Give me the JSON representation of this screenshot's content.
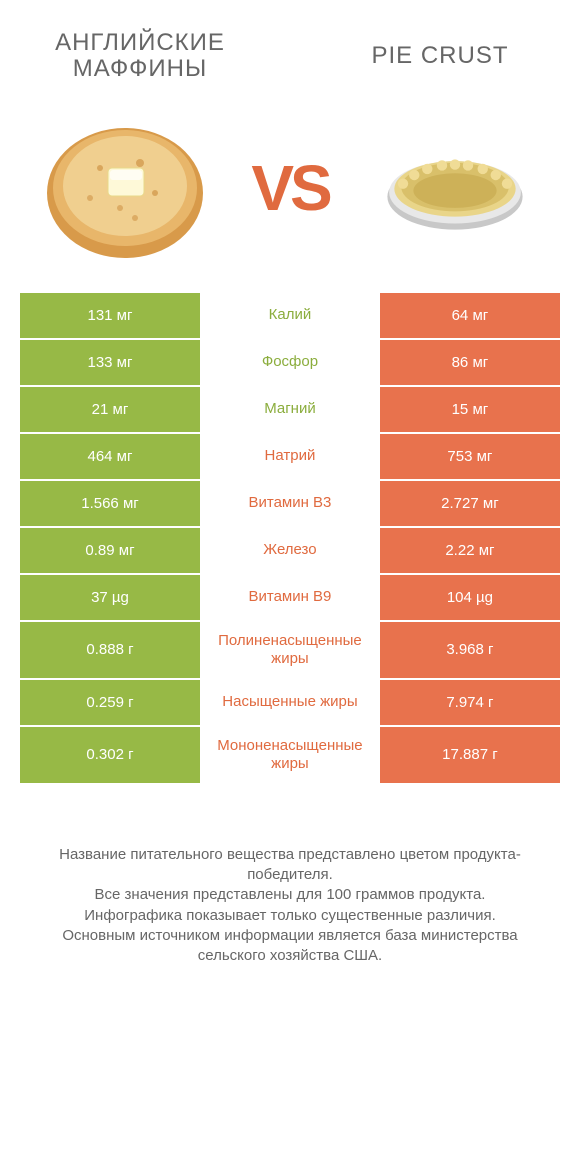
{
  "colors": {
    "green": "#97b946",
    "orange": "#e8724d",
    "green_text": "#8bad3d",
    "orange_text": "#e06a3f",
    "gray_text": "#666666",
    "white": "#ffffff"
  },
  "header": {
    "left_title": "АНГЛИЙСКИЕ МАФФИНЫ",
    "right_title": "PIE CRUST",
    "vs": "VS"
  },
  "rows": [
    {
      "left": "131 мг",
      "mid": "Калий",
      "right": "64 мг",
      "winner": "left"
    },
    {
      "left": "133 мг",
      "mid": "Фосфор",
      "right": "86 мг",
      "winner": "left"
    },
    {
      "left": "21 мг",
      "mid": "Магний",
      "right": "15 мг",
      "winner": "left"
    },
    {
      "left": "464 мг",
      "mid": "Натрий",
      "right": "753 мг",
      "winner": "right"
    },
    {
      "left": "1.566 мг",
      "mid": "Витамин B3",
      "right": "2.727 мг",
      "winner": "right"
    },
    {
      "left": "0.89 мг",
      "mid": "Железо",
      "right": "2.22 мг",
      "winner": "right"
    },
    {
      "left": "37 µg",
      "mid": "Витамин B9",
      "right": "104 µg",
      "winner": "right"
    },
    {
      "left": "0.888 г",
      "mid": "Полиненасыщенные жиры",
      "right": "3.968 г",
      "winner": "right"
    },
    {
      "left": "0.259 г",
      "mid": "Насыщенные жиры",
      "right": "7.974 г",
      "winner": "right"
    },
    {
      "left": "0.302 г",
      "mid": "Мононенасыщенные жиры",
      "right": "17.887 г",
      "winner": "right"
    }
  ],
  "footnotes": [
    "Название питательного вещества представлено цветом продукта-победителя.",
    "Все значения представлены для 100 граммов продукта.",
    "Инфографика показывает только существенные различия.",
    "Основным источником информации является база министерства сельского хозяйства США."
  ]
}
